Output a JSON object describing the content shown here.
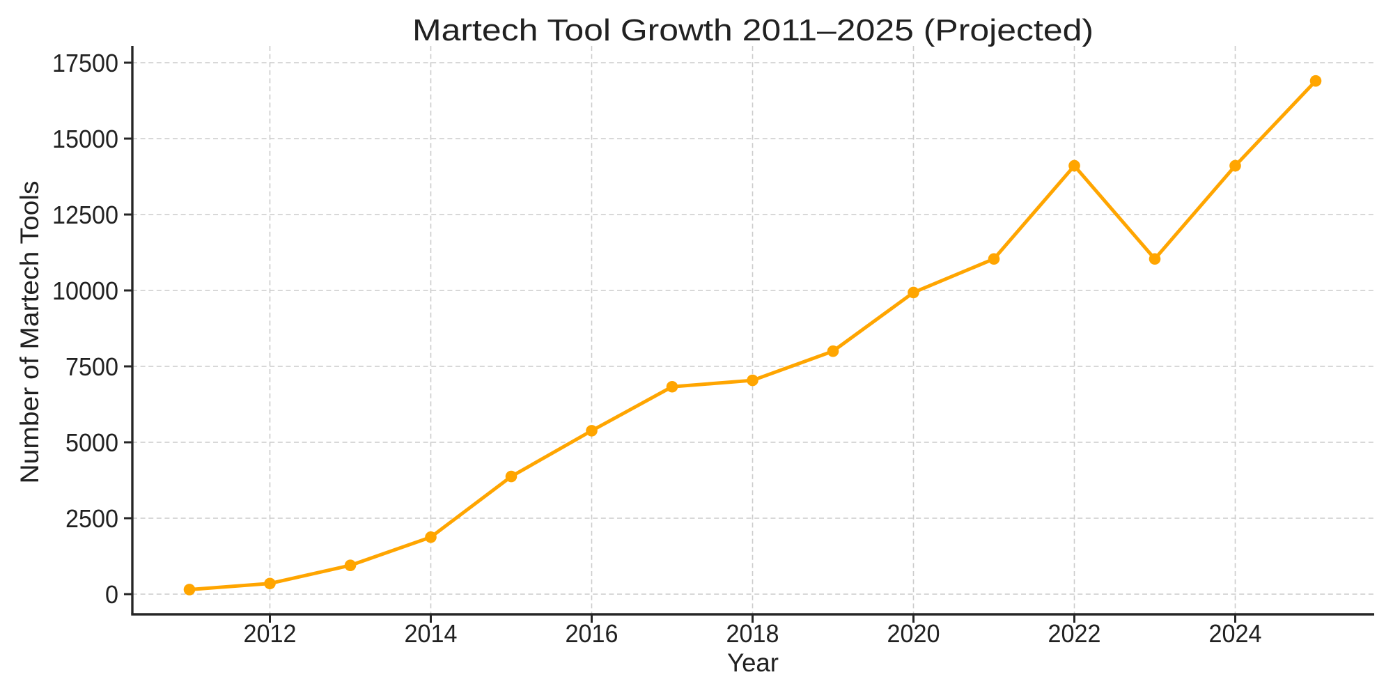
{
  "chart_data": {
    "type": "line",
    "title": "Martech Tool Growth 2011–2025 (Projected)",
    "xlabel": "Year",
    "ylabel": "Number of Martech Tools",
    "x": [
      2011,
      2012,
      2013,
      2014,
      2015,
      2016,
      2017,
      2018,
      2019,
      2020,
      2021,
      2022,
      2023,
      2024,
      2025
    ],
    "values": [
      150,
      350,
      947,
      1876,
      3874,
      5381,
      6829,
      7040,
      8000,
      9932,
      11038,
      14106,
      11038,
      14106,
      16900
    ],
    "xticks": [
      2012,
      2014,
      2016,
      2018,
      2020,
      2022,
      2024
    ],
    "yticks": [
      0,
      2500,
      5000,
      7500,
      10000,
      12500,
      15000,
      17500
    ],
    "xlim": [
      2010.3,
      2025.7
    ],
    "ylim": [
      -650,
      17960
    ],
    "grid": true,
    "grid_style": "dashed",
    "legend": false,
    "marker": "o",
    "colors": {
      "line": "#FFA500",
      "marker": "#FFA500",
      "grid": "#CBCBCB",
      "axis": "#262626",
      "text": "#212121",
      "background": "#FFFFFF"
    }
  }
}
